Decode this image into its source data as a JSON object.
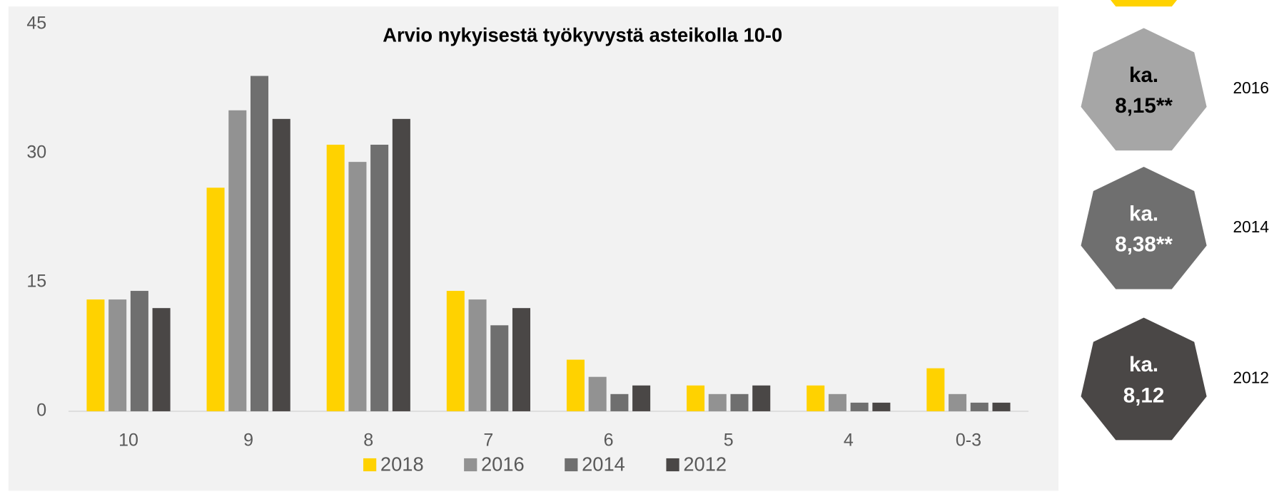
{
  "chart_data": {
    "type": "bar",
    "title": "Arvio nykyisestä työkyvystä asteikolla 10-0",
    "categories": [
      "10",
      "9",
      "8",
      "7",
      "6",
      "5",
      "4",
      "0-3"
    ],
    "series": [
      {
        "name": "2018",
        "color": "#ffd200",
        "values": [
          13,
          26,
          31,
          14,
          6,
          3,
          3,
          5
        ]
      },
      {
        "name": "2016",
        "color": "#929292",
        "values": [
          13,
          35,
          29,
          13,
          4,
          2,
          2,
          2
        ]
      },
      {
        "name": "2014",
        "color": "#6f6f6f",
        "values": [
          14,
          39,
          31,
          10,
          2,
          2,
          1,
          1
        ]
      },
      {
        "name": "2012",
        "color": "#4a4746",
        "values": [
          12,
          34,
          34,
          12,
          3,
          3,
          1,
          1
        ]
      }
    ],
    "ylim": [
      0,
      45
    ],
    "yticks": [
      0,
      15,
      30,
      45
    ],
    "grid": false,
    "legend": "bottom"
  },
  "badges": [
    {
      "label": "ka.",
      "value": "8,15**",
      "year": "2016",
      "color": "#a6a6a6",
      "text_color": "#000000"
    },
    {
      "label": "ka.",
      "value": "8,38**",
      "year": "2014",
      "color": "#6f6f6f",
      "text_color": "#ffffff"
    },
    {
      "label": "ka.",
      "value": "8,12",
      "year": "2012",
      "color": "#4a4746",
      "text_color": "#ffffff"
    }
  ]
}
